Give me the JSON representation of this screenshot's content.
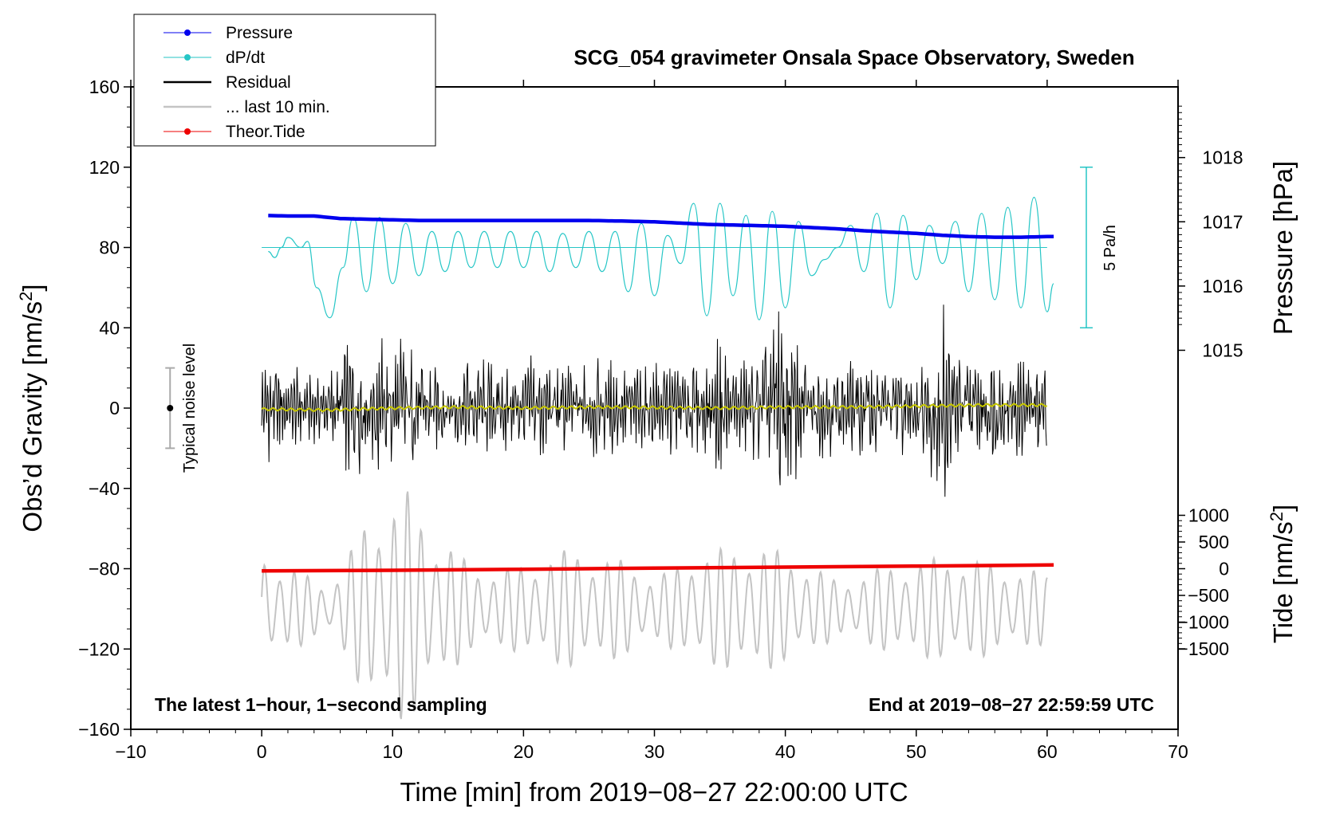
{
  "chart_data": {
    "type": "line",
    "title": "SCG_054 gravimeter Onsala Space Observatory, Sweden",
    "xlabel": "Time [min] from 2019−08−27 22:00:00 UTC",
    "ylabel_left": "Obs’d Gravity [nm/s",
    "ylabel_left_sup": "2",
    "ylabel_left_end": "]",
    "ylabel_right_pressure": "Pressure [hPa]",
    "ylabel_right_tide": "Tide [nm/s",
    "ylabel_right_tide_sup": "2",
    "ylabel_right_tide_end": "]",
    "xlim": [
      -10,
      70
    ],
    "ylim_left": [
      -160,
      160
    ],
    "xticks": [
      {
        "value": -10,
        "label": "−10"
      },
      {
        "value": 0,
        "label": "0"
      },
      {
        "value": 10,
        "label": "10"
      },
      {
        "value": 20,
        "label": "20"
      },
      {
        "value": 30,
        "label": "30"
      },
      {
        "value": 40,
        "label": "40"
      },
      {
        "value": 50,
        "label": "50"
      },
      {
        "value": 60,
        "label": "60"
      },
      {
        "value": 70,
        "label": "70"
      }
    ],
    "yticks_left": [
      {
        "value": 160,
        "label": "160"
      },
      {
        "value": 120,
        "label": "120"
      },
      {
        "value": 80,
        "label": "80"
      },
      {
        "value": 40,
        "label": "40"
      },
      {
        "value": 0,
        "label": "0"
      },
      {
        "value": -40,
        "label": "−40"
      },
      {
        "value": -80,
        "label": "−80"
      },
      {
        "value": -120,
        "label": "−120"
      },
      {
        "value": -160,
        "label": "−160"
      }
    ],
    "pressure_axis": {
      "gravity_per_hpa": 32,
      "reference_hpa": 1016.6,
      "reference_gravity": 80,
      "ticks": [
        {
          "value": 1018,
          "label": "1018"
        },
        {
          "value": 1017,
          "label": "1017"
        },
        {
          "value": 1016,
          "label": "1016"
        },
        {
          "value": 1015,
          "label": "1015"
        }
      ]
    },
    "tide_axis": {
      "gravity_per_nms2": 0.0266,
      "reference_nms2": 0,
      "reference_gravity": -80,
      "ticks": [
        {
          "value": 1000,
          "label": "1000"
        },
        {
          "value": 500,
          "label": "500"
        },
        {
          "value": 0,
          "label": "0"
        },
        {
          "value": -500,
          "label": "−500"
        },
        {
          "value": -1000,
          "label": "−1000"
        },
        {
          "value": -1500,
          "label": "−1500"
        }
      ]
    },
    "series": [
      {
        "name": "Pressure",
        "color": "#0000ee",
        "units": "hPa",
        "x": [
          0,
          2,
          4,
          5,
          6,
          8,
          10,
          12,
          15,
          18,
          20,
          22,
          25,
          28,
          30,
          32,
          34,
          36,
          38,
          40,
          42,
          44,
          46,
          48,
          50,
          52,
          54,
          56,
          58,
          60
        ],
        "values": [
          1017.1,
          1017.09,
          1017.09,
          1017.07,
          1017.05,
          1017.04,
          1017.03,
          1017.02,
          1017.02,
          1017.02,
          1017.02,
          1017.02,
          1017.02,
          1017.01,
          1017.0,
          1016.98,
          1016.96,
          1016.95,
          1016.94,
          1016.93,
          1016.91,
          1016.89,
          1016.86,
          1016.84,
          1016.82,
          1016.79,
          1016.77,
          1016.76,
          1016.76,
          1016.77
        ]
      },
      {
        "name": "dP/dt",
        "color": "#26c6c6",
        "units": "Pa/h",
        "scale_label": "5 Pa/h",
        "baseline": 80,
        "x": [
          0.5,
          1,
          1.5,
          2,
          3,
          3.5,
          4.2,
          5.2,
          6.2,
          7.0,
          8.0,
          9.0,
          10.0,
          11.0,
          12.0,
          13.0,
          14.0,
          15.0,
          16.0,
          17.0,
          18.0,
          19.0,
          20.0,
          21.0,
          22.0,
          23.0,
          24.0,
          25.0,
          26.0,
          27.0,
          28.0,
          29.0,
          30.0,
          31.0,
          32.0,
          33.0,
          34.0,
          35.0,
          36.0,
          37.0,
          38.0,
          39.0,
          40.0,
          41.0,
          42.0,
          43.0,
          44.0,
          45.0,
          46.0,
          47.0,
          48.0,
          49.0,
          50.0,
          51.0,
          52.0,
          53.0,
          54.0,
          55.0,
          56.0,
          57.0,
          58.0,
          59.0,
          60.0,
          60.5
        ],
        "values": [
          78,
          75,
          80,
          85,
          80,
          83,
          60,
          45,
          70,
          95,
          58,
          95,
          62,
          92,
          66,
          88,
          68,
          88,
          70,
          88,
          70,
          88,
          70,
          88,
          68,
          87,
          70,
          88,
          68,
          88,
          58,
          92,
          56,
          86,
          72,
          102,
          46,
          102,
          56,
          96,
          44,
          98,
          50,
          93,
          66,
          74,
          80,
          91,
          68,
          97,
          50,
          96,
          64,
          91,
          72,
          93,
          58,
          97,
          54,
          100,
          50,
          105,
          48,
          62
        ]
      },
      {
        "name": "Residual",
        "color": "#000000",
        "units": "nm/s2",
        "x": [
          0,
          0.5,
          1,
          2,
          3,
          4,
          5,
          6,
          6.5,
          7,
          8,
          9,
          10,
          10.5,
          11,
          12,
          13,
          14,
          15,
          16,
          18,
          20,
          22,
          24,
          26,
          28,
          30,
          32,
          34,
          35,
          36,
          38,
          39,
          39.5,
          40,
          42,
          44,
          46,
          48,
          50,
          51,
          51.5,
          52,
          53,
          54,
          56,
          58,
          60
        ],
        "amplitude": [
          25,
          28,
          28,
          18,
          22,
          18,
          20,
          28,
          36,
          38,
          30,
          40,
          36,
          38,
          36,
          28,
          24,
          20,
          24,
          32,
          22,
          28,
          28,
          24,
          28,
          22,
          24,
          26,
          24,
          38,
          24,
          28,
          50,
          62,
          45,
          26,
          24,
          26,
          28,
          24,
          38,
          48,
          56,
          30,
          28,
          28,
          26,
          24
        ]
      },
      {
        "name": "... last 10 min.",
        "color": "#c4c4c4",
        "units": "nm/s2",
        "center": -100,
        "x": [
          0,
          2,
          4,
          5,
          6,
          7,
          8,
          9,
          10,
          11,
          12,
          13,
          14,
          15,
          16,
          18,
          20,
          22,
          24,
          26,
          28,
          30,
          32,
          33,
          34,
          36,
          38,
          40,
          42,
          44,
          46,
          48,
          50,
          52,
          54,
          56,
          58,
          60
        ],
        "amplitude": [
          28,
          22,
          15,
          12,
          20,
          32,
          45,
          52,
          56,
          60,
          50,
          40,
          35,
          28,
          22,
          20,
          22,
          28,
          30,
          26,
          24,
          16,
          22,
          28,
          30,
          30,
          32,
          28,
          22,
          14,
          18,
          22,
          24,
          26,
          26,
          22,
          20,
          18
        ]
      },
      {
        "name": "Theor.Tide",
        "color": "#ee0000",
        "units": "nm/s2",
        "x": [
          0,
          10,
          20,
          30,
          40,
          50,
          60.5
        ],
        "values": [
          -40,
          -30,
          -10,
          10,
          30,
          50,
          70
        ]
      },
      {
        "name": "Smoothed residual",
        "color": "#c8c800",
        "units": "nm/s2",
        "x": [
          0,
          5,
          10,
          15,
          20,
          25,
          30,
          35,
          40,
          45,
          50,
          55,
          60
        ],
        "values": [
          -0.5,
          -1,
          0,
          0.5,
          0,
          0.5,
          0.3,
          0,
          0.5,
          0.5,
          1,
          1.5,
          1.5
        ]
      }
    ],
    "noise_bar": {
      "x": -7,
      "center": 0,
      "half": 20,
      "label": "Typical noise level"
    },
    "legend": [
      {
        "label": "Pressure",
        "color": "#0000ee",
        "marker": true,
        "style": "thin"
      },
      {
        "label": "dP/dt",
        "color": "#26c6c6",
        "marker": true,
        "style": "thin"
      },
      {
        "label": "Residual",
        "color": "#000000",
        "marker": false,
        "style": "thick"
      },
      {
        "label": "... last 10 min.",
        "color": "#c4c4c4",
        "marker": false,
        "style": "thick"
      },
      {
        "label": "Theor.Tide",
        "color": "#ee0000",
        "marker": true,
        "style": "thin"
      }
    ],
    "annotations": {
      "bottom_left": "The latest 1−hour, 1−second sampling",
      "bottom_right": "End at 2019−08−27 22:59:59 UTC"
    }
  }
}
